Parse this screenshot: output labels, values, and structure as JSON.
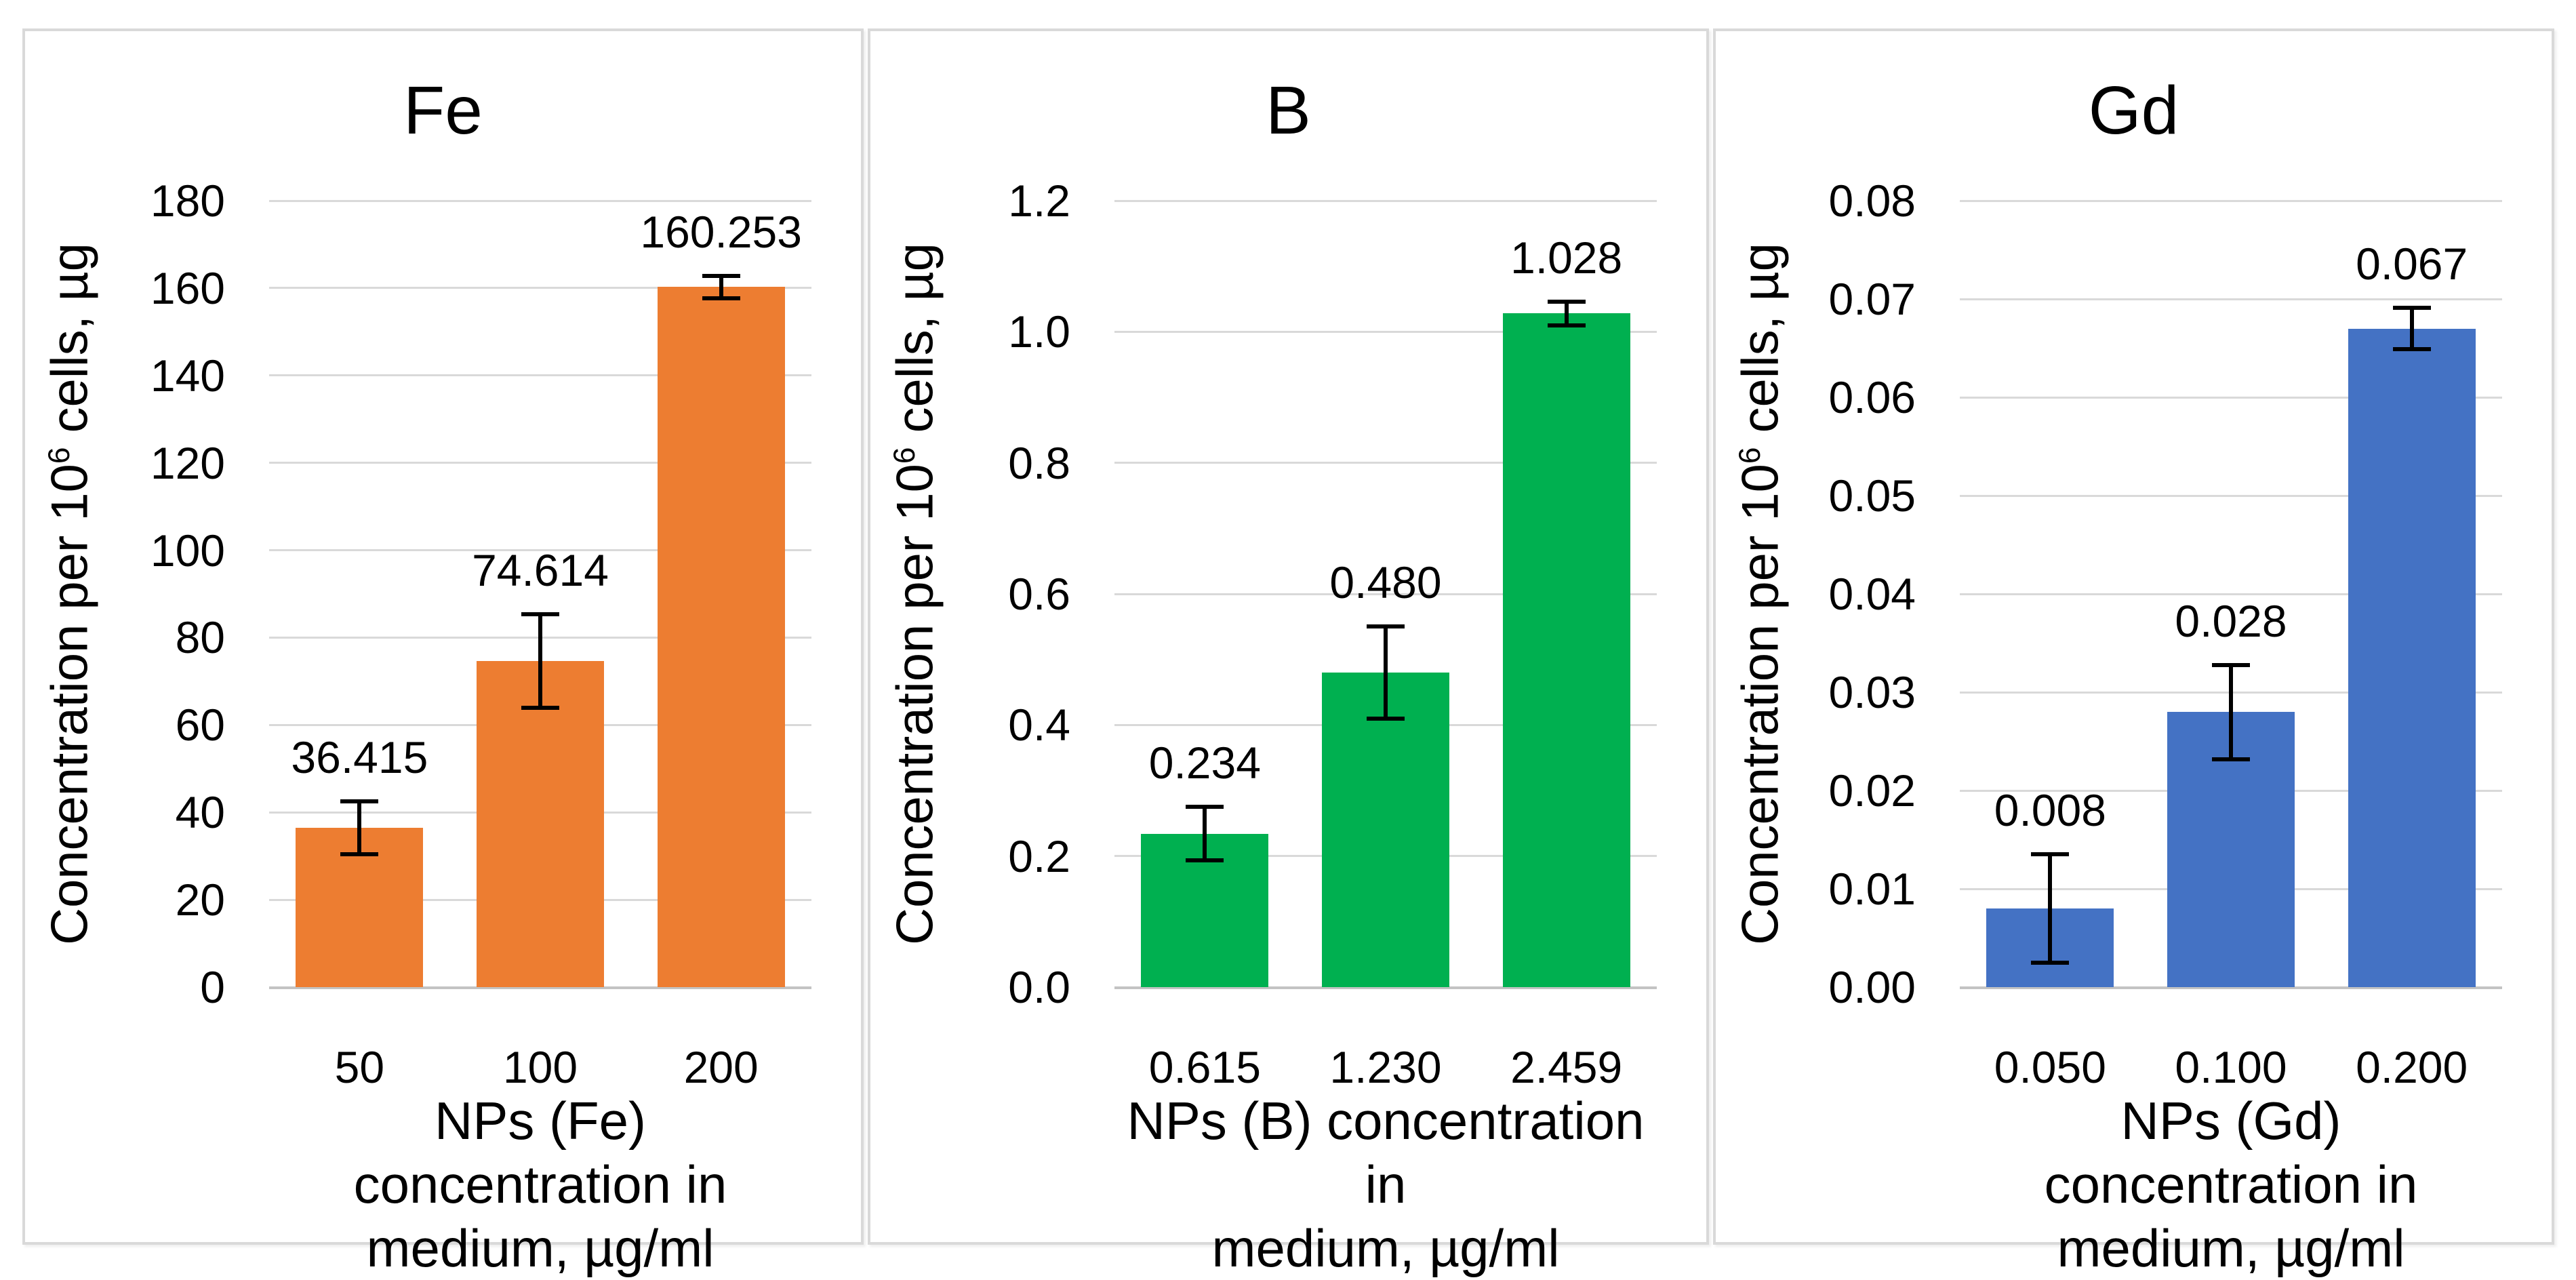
{
  "figure": {
    "background": "#ffffff",
    "panel_border_color": "#d9d9d9",
    "gridline_color": "#d9d9d9",
    "error_bar_color": "#000000",
    "text_color": "#000000"
  },
  "chart_data": [
    {
      "type": "bar",
      "title": "Fe",
      "ylabel": "Concentration per 10⁶ cells, µg",
      "ylabel_parts": {
        "pre": "Concentration per 10",
        "sup": "6",
        "post": " cells, µg"
      },
      "xlabel": "NPs (Fe) concentration in medium, µg/ml",
      "xlabel_lines": [
        "NPs (Fe) concentration in",
        "medium, µg/ml"
      ],
      "categories": [
        "50",
        "100",
        "200"
      ],
      "values": [
        36.415,
        74.614,
        160.253
      ],
      "errors": [
        6.5,
        11.2,
        3.0
      ],
      "data_labels": [
        "36.415",
        "74.614",
        "160.253"
      ],
      "ylim": [
        0,
        180
      ],
      "ytick_labels": [
        "0",
        "20",
        "40",
        "60",
        "80",
        "100",
        "120",
        "140",
        "160",
        "180"
      ],
      "bar_color": "#ED7D31",
      "grid": true,
      "legend": null
    },
    {
      "type": "bar",
      "title": "B",
      "ylabel": "Concentration per 10⁶ cells, µg",
      "ylabel_parts": {
        "pre": "Concentration per 10",
        "sup": "6",
        "post": " cells, µg"
      },
      "xlabel": "NPs (B) concentration in medium, µg/ml",
      "xlabel_lines": [
        "NPs (B) concentration in",
        "medium, µg/ml"
      ],
      "categories": [
        "0.615",
        "1.230",
        "2.459"
      ],
      "values": [
        0.234,
        0.48,
        1.028
      ],
      "errors": [
        0.044,
        0.073,
        0.021
      ],
      "data_labels": [
        "0.234",
        "0.480",
        "1.028"
      ],
      "ylim": [
        0,
        1.2
      ],
      "ytick_labels": [
        "0.0",
        "0.2",
        "0.4",
        "0.6",
        "0.8",
        "1.0",
        "1.2"
      ],
      "bar_color": "#00B050",
      "grid": true,
      "legend": null
    },
    {
      "type": "bar",
      "title": "Gd",
      "ylabel": "Concentration per 10⁶ cells, µg",
      "ylabel_parts": {
        "pre": "Concentration per 10",
        "sup": "6",
        "post": " cells, µg"
      },
      "xlabel": "NPs (Gd) concentration in medium, µg/ml",
      "xlabel_lines": [
        "NPs (Gd) concentration in",
        "medium, µg/ml"
      ],
      "categories": [
        "0.050",
        "0.100",
        "0.200"
      ],
      "values": [
        0.008,
        0.028,
        0.067
      ],
      "errors": [
        0.0057,
        0.005,
        0.0023
      ],
      "data_labels": [
        "0.008",
        "0.028",
        "0.067"
      ],
      "ylim": [
        0,
        0.08
      ],
      "ytick_labels": [
        "0.00",
        "0.01",
        "0.02",
        "0.03",
        "0.04",
        "0.05",
        "0.06",
        "0.07",
        "0.08"
      ],
      "bar_color": "#4472C4",
      "grid": true,
      "legend": null
    }
  ]
}
